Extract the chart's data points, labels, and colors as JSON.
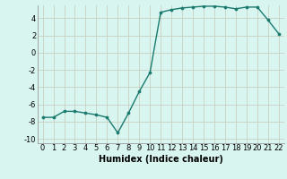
{
  "x": [
    0,
    1,
    2,
    3,
    4,
    5,
    6,
    7,
    8,
    9,
    10,
    11,
    12,
    13,
    14,
    15,
    16,
    17,
    18,
    19,
    20,
    21,
    22
  ],
  "y": [
    -7.5,
    -7.5,
    -6.8,
    -6.8,
    -7.0,
    -7.2,
    -7.5,
    -9.3,
    -7.0,
    -4.5,
    -2.3,
    4.7,
    5.0,
    5.2,
    5.3,
    5.4,
    5.4,
    5.3,
    5.1,
    5.3,
    5.3,
    3.8,
    2.2
  ],
  "line_color": "#1a7a6e",
  "marker": "o",
  "markersize": 2.2,
  "linewidth": 1.0,
  "bg_color": "#d8f5f0",
  "grid_color": "#c8c8b8",
  "xlabel": "Humidex (Indice chaleur)",
  "xlim": [
    -0.5,
    22.5
  ],
  "ylim": [
    -10.5,
    5.5
  ],
  "xticks": [
    0,
    1,
    2,
    3,
    4,
    5,
    6,
    7,
    8,
    9,
    10,
    11,
    12,
    13,
    14,
    15,
    16,
    17,
    18,
    19,
    20,
    21,
    22
  ],
  "yticks": [
    -10,
    -8,
    -6,
    -4,
    -2,
    0,
    2,
    4
  ],
  "tick_fontsize": 6.0,
  "xlabel_fontsize": 7.0
}
